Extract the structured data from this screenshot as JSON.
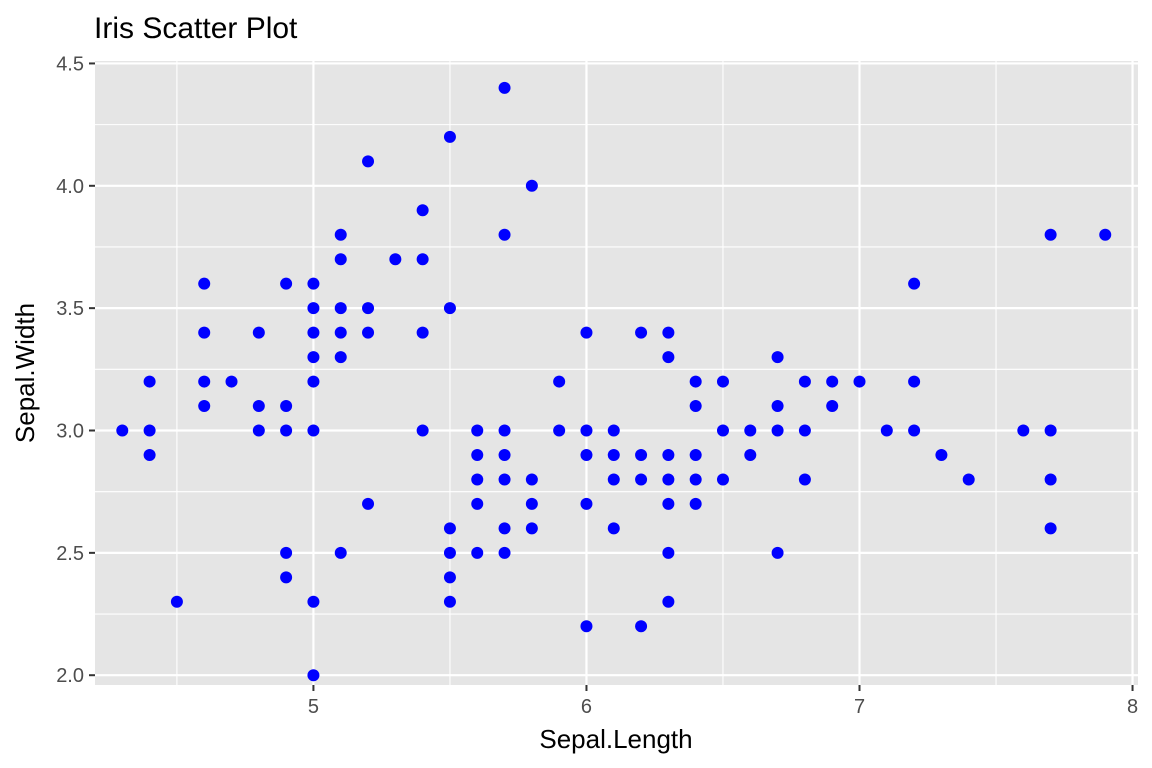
{
  "chart_data": {
    "type": "scatter",
    "title": "Iris Scatter Plot",
    "xlabel": "Sepal.Length",
    "ylabel": "Sepal.Width",
    "xlim": [
      4.2,
      8.02
    ],
    "ylim": [
      1.96,
      4.51
    ],
    "x_ticks": [
      5,
      6,
      7,
      8
    ],
    "x_tick_labels": [
      "5",
      "6",
      "7",
      "8"
    ],
    "y_ticks": [
      2.0,
      2.5,
      3.0,
      3.5,
      4.0,
      4.5
    ],
    "y_tick_labels": [
      "2.0",
      "2.5",
      "3.0",
      "3.5",
      "4.0",
      "4.5"
    ],
    "grid": true,
    "legend": "none",
    "colors": {
      "point": "#0000ff",
      "panel": "#e5e5e5",
      "grid": "#ffffff",
      "tick_text": "#4d4d4d",
      "tick_mark": "#333333"
    },
    "points": [
      [
        4.3,
        3.0
      ],
      [
        4.4,
        3.2
      ],
      [
        4.4,
        3.0
      ],
      [
        4.4,
        2.9
      ],
      [
        4.5,
        2.3
      ],
      [
        4.6,
        3.6
      ],
      [
        4.6,
        3.4
      ],
      [
        4.6,
        3.2
      ],
      [
        4.6,
        3.1
      ],
      [
        4.7,
        3.2
      ],
      [
        4.8,
        3.4
      ],
      [
        4.8,
        3.1
      ],
      [
        4.8,
        3.0
      ],
      [
        4.9,
        3.6
      ],
      [
        4.9,
        3.1
      ],
      [
        4.9,
        3.0
      ],
      [
        4.9,
        2.5
      ],
      [
        4.9,
        2.4
      ],
      [
        5.0,
        3.6
      ],
      [
        5.0,
        3.5
      ],
      [
        5.0,
        3.4
      ],
      [
        5.0,
        3.3
      ],
      [
        5.0,
        3.2
      ],
      [
        5.0,
        3.0
      ],
      [
        5.0,
        2.3
      ],
      [
        5.0,
        2.0
      ],
      [
        5.1,
        3.8
      ],
      [
        5.1,
        3.7
      ],
      [
        5.1,
        3.5
      ],
      [
        5.1,
        3.4
      ],
      [
        5.1,
        3.3
      ],
      [
        5.1,
        2.5
      ],
      [
        5.2,
        4.1
      ],
      [
        5.2,
        3.5
      ],
      [
        5.2,
        3.4
      ],
      [
        5.2,
        2.7
      ],
      [
        5.3,
        3.7
      ],
      [
        5.4,
        3.9
      ],
      [
        5.4,
        3.7
      ],
      [
        5.4,
        3.4
      ],
      [
        5.4,
        3.0
      ],
      [
        5.5,
        4.2
      ],
      [
        5.5,
        3.5
      ],
      [
        5.5,
        2.6
      ],
      [
        5.5,
        2.5
      ],
      [
        5.5,
        2.4
      ],
      [
        5.5,
        2.3
      ],
      [
        5.6,
        3.0
      ],
      [
        5.6,
        2.9
      ],
      [
        5.6,
        2.8
      ],
      [
        5.6,
        2.7
      ],
      [
        5.6,
        2.5
      ],
      [
        5.7,
        4.4
      ],
      [
        5.7,
        3.8
      ],
      [
        5.7,
        3.0
      ],
      [
        5.7,
        2.9
      ],
      [
        5.7,
        2.8
      ],
      [
        5.7,
        2.6
      ],
      [
        5.7,
        2.5
      ],
      [
        5.8,
        4.0
      ],
      [
        5.8,
        2.8
      ],
      [
        5.8,
        2.7
      ],
      [
        5.8,
        2.6
      ],
      [
        5.9,
        3.2
      ],
      [
        5.9,
        3.0
      ],
      [
        6.0,
        3.4
      ],
      [
        6.0,
        3.0
      ],
      [
        6.0,
        2.9
      ],
      [
        6.0,
        2.7
      ],
      [
        6.0,
        2.2
      ],
      [
        6.1,
        3.0
      ],
      [
        6.1,
        2.9
      ],
      [
        6.1,
        2.8
      ],
      [
        6.1,
        2.6
      ],
      [
        6.2,
        3.4
      ],
      [
        6.2,
        2.9
      ],
      [
        6.2,
        2.8
      ],
      [
        6.2,
        2.2
      ],
      [
        6.3,
        3.4
      ],
      [
        6.3,
        3.3
      ],
      [
        6.3,
        2.9
      ],
      [
        6.3,
        2.8
      ],
      [
        6.3,
        2.7
      ],
      [
        6.3,
        2.5
      ],
      [
        6.3,
        2.3
      ],
      [
        6.4,
        3.2
      ],
      [
        6.4,
        3.1
      ],
      [
        6.4,
        2.9
      ],
      [
        6.4,
        2.8
      ],
      [
        6.4,
        2.7
      ],
      [
        6.5,
        3.2
      ],
      [
        6.5,
        3.0
      ],
      [
        6.5,
        2.8
      ],
      [
        6.6,
        3.0
      ],
      [
        6.6,
        2.9
      ],
      [
        6.7,
        3.3
      ],
      [
        6.7,
        3.1
      ],
      [
        6.7,
        3.0
      ],
      [
        6.7,
        2.5
      ],
      [
        6.8,
        3.2
      ],
      [
        6.8,
        3.0
      ],
      [
        6.8,
        2.8
      ],
      [
        6.9,
        3.2
      ],
      [
        6.9,
        3.1
      ],
      [
        7.0,
        3.2
      ],
      [
        7.1,
        3.0
      ],
      [
        7.2,
        3.6
      ],
      [
        7.2,
        3.2
      ],
      [
        7.2,
        3.0
      ],
      [
        7.3,
        2.9
      ],
      [
        7.4,
        2.8
      ],
      [
        7.6,
        3.0
      ],
      [
        7.7,
        3.8
      ],
      [
        7.7,
        3.0
      ],
      [
        7.7,
        2.8
      ],
      [
        7.7,
        2.6
      ],
      [
        7.9,
        3.8
      ]
    ]
  }
}
